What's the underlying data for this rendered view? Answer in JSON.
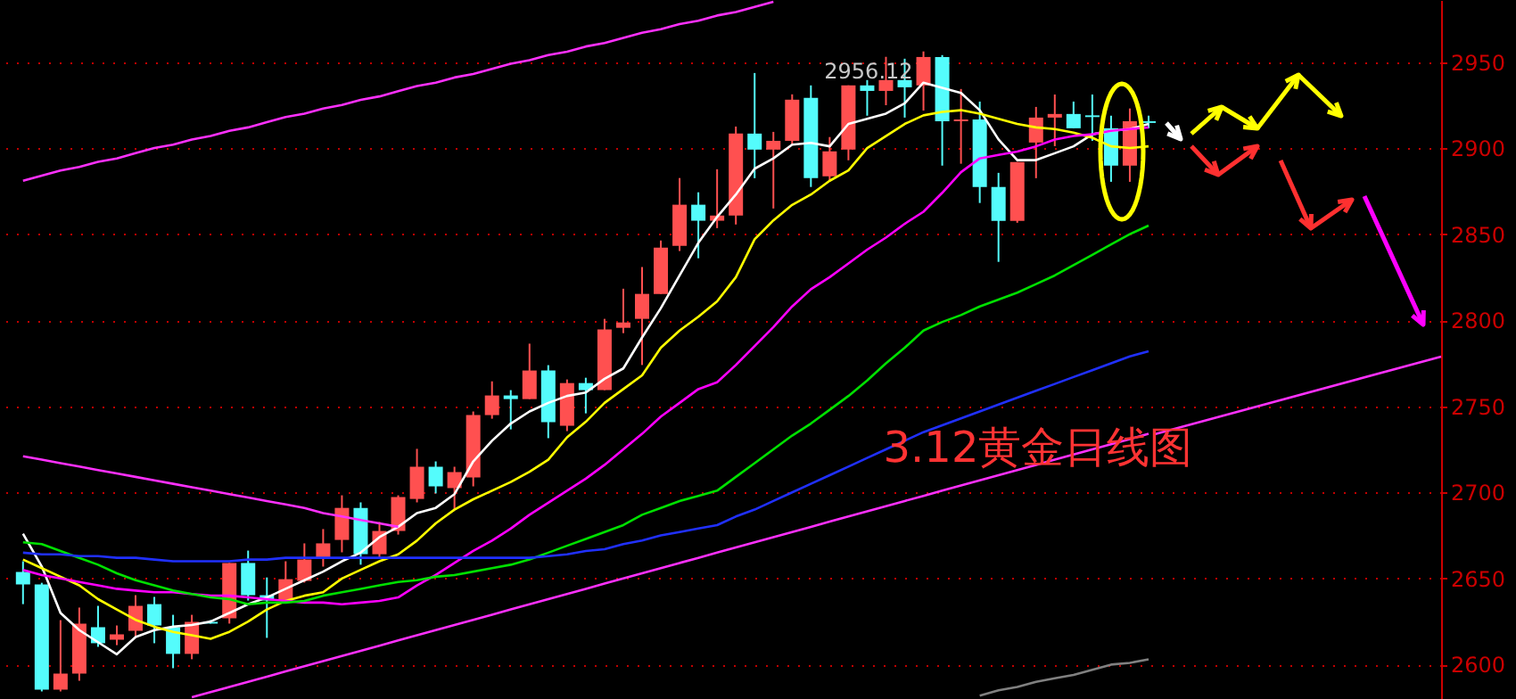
{
  "chart_data": {
    "type": "candlestick",
    "title": "3.12黄金日线图",
    "categories": [
      null,
      null,
      null,
      null,
      null,
      null,
      null,
      null,
      null,
      null,
      null,
      null,
      null,
      null,
      null,
      null,
      null,
      null,
      null,
      null,
      null,
      null,
      null,
      null,
      null,
      null,
      null,
      null,
      null,
      null,
      null,
      null,
      null,
      null,
      null,
      null,
      null,
      null,
      null,
      null,
      null,
      null,
      null,
      null,
      null,
      null,
      null,
      null,
      null,
      null,
      null,
      null,
      null,
      null,
      null,
      null,
      null,
      null,
      null,
      null,
      null
    ],
    "ohlc": [
      [
        2653.8,
        2660,
        2635.1,
        2646.5
      ],
      [
        2646.5,
        2647.5,
        2584.4,
        2585.5
      ],
      [
        2585.5,
        2625.8,
        2584.4,
        2594.8
      ],
      [
        2594.8,
        2633.1,
        2590.6,
        2623.8
      ],
      [
        2621.7,
        2634.1,
        2610.3,
        2612.4
      ],
      [
        2614.4,
        2622.7,
        2611.3,
        2617.5
      ],
      [
        2619.6,
        2640.3,
        2615.5,
        2634.1
      ],
      [
        2635.1,
        2639.3,
        2612.4,
        2622.7
      ],
      [
        2621.7,
        2628.9,
        2597.9,
        2606.2
      ],
      [
        2606.2,
        2628.9,
        2603.1,
        2624.8
      ],
      [
        2624.8,
        2625.8,
        2623.8,
        2623.8
      ],
      [
        2626.9,
        2659,
        2623.8,
        2659
      ],
      [
        2659,
        2666.2,
        2637.2,
        2640.3
      ],
      [
        2640.3,
        2650.6,
        2615.5,
        2637.2
      ],
      [
        2637.2,
        2660,
        2637.2,
        2649.6
      ],
      [
        2648.6,
        2670.4,
        2647.6,
        2661
      ],
      [
        2662.1,
        2678.7,
        2656.9,
        2670.4
      ],
      [
        2672.4,
        2698.3,
        2665.2,
        2691
      ],
      [
        2691,
        2694.2,
        2658,
        2664.1
      ],
      [
        2664.1,
        2682.8,
        2662.1,
        2677.6
      ],
      [
        2677.6,
        2698.3,
        2675.5,
        2697.3
      ],
      [
        2696.2,
        2725.3,
        2694.2,
        2714.9
      ],
      [
        2714.9,
        2718,
        2699.4,
        2703.5
      ],
      [
        2702.5,
        2714.9,
        2690,
        2711.8
      ],
      [
        2708.7,
        2747,
        2703.5,
        2744.9
      ],
      [
        2744.9,
        2764.5,
        2742.8,
        2756.3
      ],
      [
        2756.3,
        2759.4,
        2736.6,
        2754.2
      ],
      [
        2754.2,
        2786.4,
        2754.2,
        2770.8
      ],
      [
        2770.8,
        2773.9,
        2731.5,
        2740.8
      ],
      [
        2738.7,
        2765.6,
        2735.6,
        2763.5
      ],
      [
        2763.5,
        2766.6,
        2745.9,
        2759.4
      ],
      [
        2759.4,
        2800.8,
        2759.4,
        2794.6
      ],
      [
        2795.6,
        2818.3,
        2792.5,
        2798.7
      ],
      [
        2800.8,
        2830.9,
        2774,
        2815.3
      ],
      [
        2815.3,
        2846.3,
        2815.3,
        2842.2
      ],
      [
        2843.2,
        2882.6,
        2840.2,
        2867.1
      ],
      [
        2867.1,
        2874.3,
        2836,
        2857.8
      ],
      [
        2857.8,
        2887.7,
        2853.5,
        2860.8
      ],
      [
        2860.8,
        2912.5,
        2855.6,
        2908.4
      ],
      [
        2908.4,
        2943.6,
        2882.5,
        2899.1
      ],
      [
        2899.1,
        2909.4,
        2864.9,
        2904.2
      ],
      [
        2904.2,
        2931.2,
        2902.2,
        2928.1
      ],
      [
        2929.2,
        2936.4,
        2877.4,
        2882.5
      ],
      [
        2883.6,
        2906.4,
        2880.4,
        2898.1
      ],
      [
        2899.1,
        2936.4,
        2892.9,
        2936.4
      ],
      [
        2936.4,
        2939.5,
        2918.8,
        2933.2
      ],
      [
        2933.2,
        2953,
        2924.9,
        2939.5
      ],
      [
        2939.5,
        2951.9,
        2917.7,
        2935.3
      ],
      [
        2936.4,
        2956.12,
        2921.8,
        2952.9
      ],
      [
        2952.9,
        2954,
        2889.8,
        2915.6
      ],
      [
        2915.6,
        2934.3,
        2890.9,
        2916.6
      ],
      [
        2916.6,
        2927,
        2868.1,
        2877.4
      ],
      [
        2877.4,
        2885.6,
        2833.9,
        2857.7
      ],
      [
        2857.7,
        2891.9,
        2856.6,
        2891.9
      ],
      [
        2903.2,
        2923.9,
        2882.5,
        2917.7
      ],
      [
        2917.7,
        2931.1,
        2901.1,
        2919.8
      ],
      [
        2919.8,
        2927,
        2911.5,
        2911.5
      ],
      [
        2919,
        2931.1,
        2904.2,
        2918
      ],
      [
        2911.5,
        2918.8,
        2880.4,
        2889.8
      ],
      [
        2889.8,
        2923,
        2880.4,
        2915.6
      ],
      [
        2915.6,
        2918.8,
        2911.5,
        2914.6
      ]
    ],
    "colors": [
      "#54fcfc",
      "#54fcfc",
      "#ff5050",
      "#ff5050",
      "#54fcfc",
      "#ff5050",
      "#ff5050",
      "#54fcfc",
      "#54fcfc",
      "#ff5050",
      "#54fcfc",
      "#ff5050",
      "#54fcfc",
      "#54fcfc",
      "#ff5050",
      "#ff5050",
      "#ff5050",
      "#ff5050",
      "#54fcfc",
      "#ff5050",
      "#ff5050",
      "#ff5050",
      "#54fcfc",
      "#ff5050",
      "#ff5050",
      "#ff5050",
      "#54fcfc",
      "#ff5050",
      "#54fcfc",
      "#ff5050",
      "#54fcfc",
      "#ff5050",
      "#ff5050",
      "#ff5050",
      "#ff5050",
      "#ff5050",
      "#54fcfc",
      "#ff5050",
      "#ff5050",
      "#54fcfc",
      "#ff5050",
      "#ff5050",
      "#54fcfc",
      "#ff5050",
      "#ff5050",
      "#54fcfc",
      "#ff5050",
      "#54fcfc",
      "#ff5050",
      "#54fcfc",
      "#ff5050",
      "#54fcfc",
      "#54fcfc",
      "#ff5050",
      "#ff5050",
      "#ff5050",
      "#54fcfc",
      "#54fcfc",
      "#54fcfc",
      "#ff5050",
      "#54fcfc"
    ],
    "series": [
      {
        "type": "line",
        "color": "#ffffff",
        "values": [
          2676,
          2657,
          2630,
          2620,
          2613,
          2606,
          2616,
          2620,
          2622,
          2623,
          2625,
          2630,
          2635,
          2639,
          2644,
          2649,
          2654,
          2660,
          2665,
          2674,
          2680,
          2688,
          2691,
          2699,
          2718,
          2730,
          2740,
          2747,
          2752,
          2756,
          2758,
          2766,
          2772,
          2790,
          2807,
          2826,
          2845,
          2860,
          2873,
          2888,
          2894,
          2902,
          2903,
          2901,
          2914,
          2917,
          2920,
          2926,
          2938,
          2935,
          2932,
          2922,
          2905,
          2893,
          2893,
          2897,
          2901,
          2908,
          2910,
          2911,
          2914
        ]
      },
      {
        "type": "line",
        "color": "#ffff00",
        "values": [
          2661,
          2656,
          2651,
          2646,
          2638,
          2632,
          2626,
          2622,
          2619,
          2617,
          2615,
          2619,
          2625,
          2632,
          2637,
          2640,
          2642,
          2650,
          2655,
          2660,
          2664,
          2672,
          2682,
          2690,
          2696,
          2701,
          2706,
          2712,
          2719,
          2732,
          2741,
          2752,
          2760,
          2768,
          2784,
          2794,
          2802,
          2811,
          2825,
          2847,
          2858,
          2867,
          2873,
          2881,
          2887,
          2900,
          2907,
          2914,
          2919,
          2921,
          2922,
          2920,
          2917,
          2914,
          2912,
          2911,
          2909,
          2906,
          2901,
          2900,
          2901
        ]
      },
      {
        "type": "line",
        "color": "#ff00ff",
        "values": [
          2655,
          2652,
          2650,
          2648,
          2646,
          2644,
          2643,
          2642,
          2642,
          2641,
          2640,
          2640,
          2639,
          2638,
          2637,
          2636,
          2636,
          2635,
          2636,
          2637,
          2639,
          2646,
          2652,
          2659,
          2666,
          2672,
          2679,
          2687,
          2694,
          2701,
          2708,
          2716,
          2725,
          2734,
          2744,
          2752,
          2760,
          2764,
          2774,
          2785,
          2796,
          2808,
          2818,
          2825,
          2833,
          2841,
          2848,
          2856,
          2863,
          2874,
          2886,
          2894,
          2896,
          2898,
          2901,
          2905,
          2907,
          2908,
          2910,
          2911,
          2912
        ]
      },
      {
        "type": "line",
        "color": "#00e000",
        "values": [
          2671,
          2670,
          2666,
          2662,
          2658,
          2653,
          2649,
          2646,
          2643,
          2641,
          2639,
          2638,
          2635,
          2636,
          2636,
          2637,
          2640,
          2642,
          2644,
          2646,
          2648,
          2649,
          2651,
          2652,
          2654,
          2656,
          2658,
          2661,
          2665,
          2669,
          2673,
          2677,
          2681,
          2687,
          2691,
          2695,
          2698,
          2701,
          2709,
          2717,
          2725,
          2733,
          2740,
          2748,
          2756,
          2765,
          2775,
          2784,
          2794,
          2799,
          2803,
          2808,
          2812,
          2816,
          2821,
          2826,
          2832,
          2838,
          2844,
          2850,
          2855
        ]
      },
      {
        "type": "line",
        "color": "#2030ff",
        "values": [
          2665,
          2664,
          2664,
          2663,
          2663,
          2662,
          2662,
          2661,
          2660,
          2660,
          2660,
          2660,
          2661,
          2661,
          2662,
          2662,
          2662,
          2662,
          2662,
          2662,
          2662,
          2662,
          2662,
          2662,
          2662,
          2662,
          2662,
          2662,
          2663,
          2664,
          2666,
          2667,
          2670,
          2672,
          2675,
          2677,
          2679,
          2681,
          2686,
          2690,
          2695,
          2700,
          2705,
          2710,
          2715,
          2720,
          2725,
          2730,
          2735,
          2739,
          2743,
          2747,
          2751,
          2755,
          2759,
          2763,
          2767,
          2771,
          2775,
          2779,
          2782
        ]
      },
      {
        "type": "line",
        "color": "#808080",
        "values": [
          null,
          null,
          null,
          null,
          null,
          null,
          null,
          null,
          null,
          null,
          null,
          null,
          null,
          null,
          null,
          null,
          null,
          null,
          null,
          null,
          null,
          null,
          null,
          null,
          null,
          null,
          null,
          null,
          null,
          null,
          null,
          null,
          null,
          null,
          null,
          null,
          null,
          null,
          null,
          null,
          null,
          null,
          null,
          null,
          null,
          null,
          null,
          null,
          null,
          null,
          null,
          2582,
          2585,
          2587,
          2590,
          2592,
          2594,
          2597,
          2600,
          2601,
          2603
        ]
      },
      {
        "type": "line",
        "color": "#ff30ff",
        "values": [
          2881,
          2884,
          2887,
          2889,
          2892,
          2894,
          2897,
          2900,
          2902,
          2905,
          2907,
          2910,
          2912,
          2915,
          2918,
          2920,
          2923,
          2925,
          2928,
          2930,
          2933,
          2936,
          2938,
          2941,
          2943,
          2946,
          2949,
          2951,
          2954,
          2956,
          2959,
          2961,
          2964,
          2967,
          2969,
          2972,
          2974,
          2977,
          2979,
          2982,
          2985,
          null,
          null,
          null,
          null,
          null,
          null,
          null,
          null,
          null,
          null,
          null,
          null,
          null,
          null,
          null,
          null,
          null,
          null,
          null,
          null
        ]
      },
      {
        "type": "line",
        "color": "#ff30ff",
        "values": [
          null,
          null,
          null,
          null,
          null,
          null,
          null,
          null,
          null,
          2581,
          2584,
          2587,
          2590,
          2593,
          2596,
          2599,
          2602,
          2605,
          2608,
          2611,
          2614,
          2617,
          2620,
          2623,
          2626,
          2629,
          2632,
          2635,
          2638,
          2641,
          2644,
          2647,
          2650,
          2653,
          2656,
          2659,
          2662,
          2665,
          2668,
          2671,
          2674,
          2677,
          2680,
          2683,
          2686,
          2689,
          2692,
          2695,
          2698,
          2701,
          2704,
          2707,
          2710,
          2713,
          2716,
          2719,
          2722,
          2725,
          2728,
          2731,
          2734
        ]
      },
      {
        "type": "line",
        "color": "#ff30ff",
        "values": [
          2721,
          2719,
          2717,
          2715,
          2713,
          2711,
          2709,
          2707,
          2705,
          2703,
          2701,
          2699,
          2697,
          2695,
          2693,
          2691,
          2688,
          2686,
          2684,
          2682,
          2680,
          null,
          null,
          null,
          null,
          null,
          null,
          null,
          null,
          null,
          null,
          null,
          null,
          null,
          null,
          null,
          null,
          null,
          null,
          null,
          null,
          null,
          null,
          null,
          null,
          null,
          null,
          null,
          null,
          null,
          null,
          null,
          null,
          null,
          null,
          null,
          null,
          null,
          null,
          null,
          null
        ]
      }
    ],
    "annotations": [
      "2956.12"
    ],
    "ylim": [
      2580,
      2986
    ],
    "yticks": [
      2600,
      2650,
      2700,
      2750,
      2800,
      2850,
      2900,
      2950
    ],
    "grid": "y",
    "tick_labels": "y"
  }
}
